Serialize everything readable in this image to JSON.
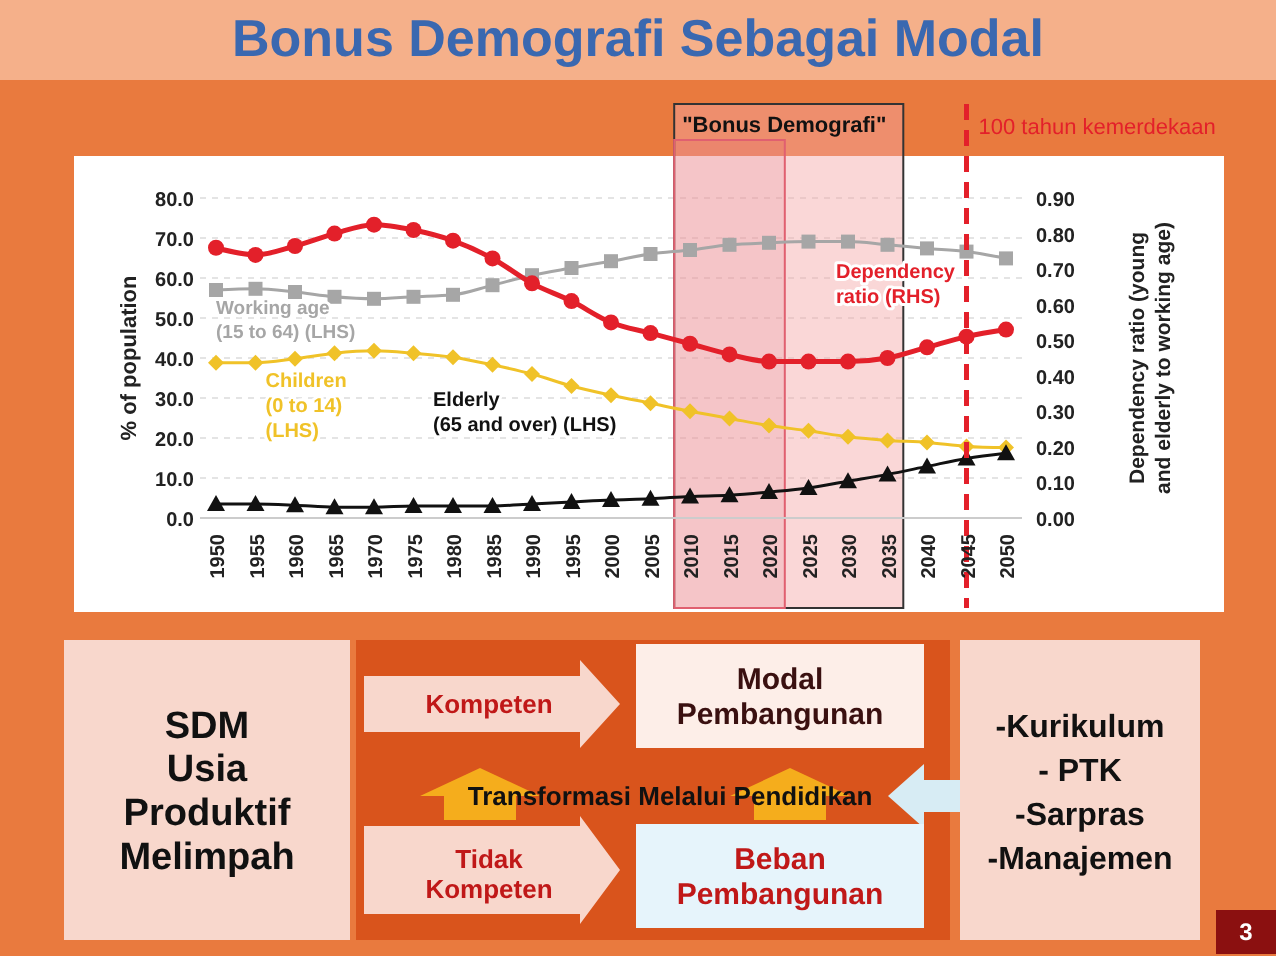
{
  "chart_data": [
    {
      "type": "line",
      "title": "Bonus Demografi Sebagai Modal",
      "ylabel": "% of population",
      "y2label": "Dependency ratio (young and elderly to working age)",
      "categories": [
        "1950",
        "1955",
        "1960",
        "1965",
        "1970",
        "1975",
        "1980",
        "1985",
        "1990",
        "1995",
        "2000",
        "2005",
        "2010",
        "2015",
        "2020",
        "2025",
        "2030",
        "2035",
        "2040",
        "2045",
        "2050"
      ],
      "series": [
        {
          "name": "Working age\n(15 to 64) (LHS)",
          "color": "#a6a6a6",
          "marker": "square",
          "values": [
            57.0,
            57.3,
            56.5,
            55.3,
            54.8,
            55.3,
            55.8,
            58.2,
            60.7,
            62.5,
            64.2,
            66.0,
            67.0,
            68.3,
            68.8,
            69.1,
            69.1,
            68.3,
            67.4,
            66.6,
            64.9
          ]
        },
        {
          "name": "Children\n(0 to 14)\n(LHS)",
          "color": "#f0c228",
          "marker": "diamond",
          "values": [
            38.8,
            38.8,
            39.8,
            41.2,
            41.8,
            41.2,
            40.2,
            38.3,
            36.0,
            33.0,
            30.7,
            28.7,
            26.7,
            24.9,
            23.1,
            21.8,
            20.3,
            19.4,
            18.9,
            17.9,
            17.6
          ]
        },
        {
          "name": "Elderly\n(65 and over) (LHS)",
          "color": "#111111",
          "marker": "triangle",
          "values": [
            3.5,
            3.5,
            3.2,
            2.7,
            2.7,
            3.0,
            3.0,
            3.0,
            3.5,
            4.0,
            4.5,
            4.8,
            5.4,
            5.7,
            6.5,
            7.5,
            9.2,
            10.9,
            12.9,
            14.9,
            16.2
          ]
        },
        {
          "name": "Dependency\nratio (RHS)",
          "color": "#e3202a",
          "marker": "circle",
          "axis": "y2",
          "values": [
            0.76,
            0.74,
            0.765,
            0.8,
            0.825,
            0.81,
            0.78,
            0.73,
            0.66,
            0.61,
            0.55,
            0.52,
            0.49,
            0.46,
            0.44,
            0.44,
            0.44,
            0.45,
            0.48,
            0.51,
            0.53
          ]
        }
      ],
      "ylim": [
        0,
        80
      ],
      "yticks": [
        {
          "value": 0,
          "label": "0.0"
        },
        {
          "value": 10,
          "label": "10.0"
        },
        {
          "value": 20,
          "label": "20.0"
        },
        {
          "value": 30,
          "label": "30.0"
        },
        {
          "value": 40,
          "label": "40.0"
        },
        {
          "value": 50,
          "label": "50.0"
        },
        {
          "value": 60,
          "label": "60.0"
        },
        {
          "value": 70,
          "label": "70.0"
        },
        {
          "value": 80,
          "label": "80.0"
        }
      ],
      "y2lim": [
        0,
        0.9
      ],
      "y2ticks": [
        {
          "value": 0,
          "label": "0.00"
        },
        {
          "value": 0.1,
          "label": "0.10"
        },
        {
          "value": 0.2,
          "label": "0.20"
        },
        {
          "value": 0.3,
          "label": "0.30"
        },
        {
          "value": 0.4,
          "label": "0.40"
        },
        {
          "value": 0.5,
          "label": "0.50"
        },
        {
          "value": 0.6,
          "label": "0.60"
        },
        {
          "value": 0.7,
          "label": "0.70"
        },
        {
          "value": 0.8,
          "label": "0.80"
        },
        {
          "value": 0.9,
          "label": "0.90"
        }
      ],
      "grid": "y",
      "legend": false,
      "bands": [
        {
          "axis": "x",
          "from": "2010",
          "to": "2035",
          "label": "\"Bonus Demografi\"",
          "color": "#f4a7a7"
        },
        {
          "axis": "x",
          "from": "2010",
          "to": "2020",
          "color": "#e06070"
        }
      ],
      "ref_lines": [
        {
          "axis": "x",
          "value": "2045",
          "label": "100  tahun kemerdekaan",
          "color": "#e3202a",
          "line_style": "dashed"
        }
      ]
    },
    {
      "type": "other",
      "annotations": [
        "SDM Usia Produktif Melimpah",
        "Kompeten",
        "Modal Pembangunan",
        "Transformasi Melalui Pendidikan",
        "Tidak Kompeten",
        "Beban Pembangunan",
        "-Kurikulum",
        "- PTK",
        "-Sarpras",
        "-Manajemen",
        "3"
      ]
    }
  ]
}
